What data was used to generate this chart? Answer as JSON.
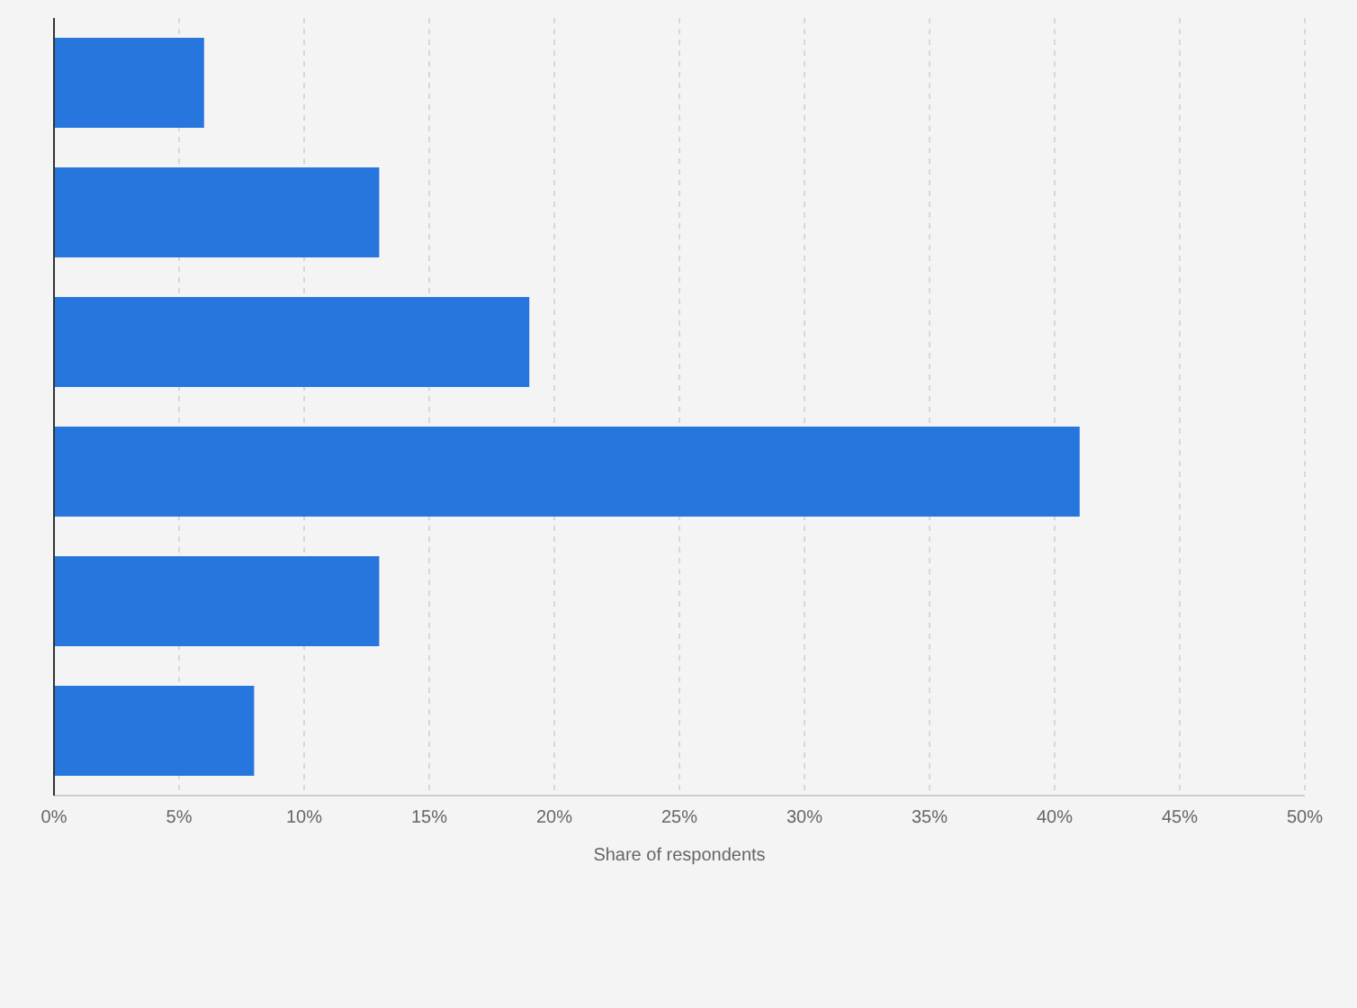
{
  "chart_data": {
    "type": "bar",
    "orientation": "horizontal",
    "xlabel": "Share of respondents",
    "categories": [
      null,
      null,
      null,
      null,
      null,
      null
    ],
    "values": [
      6,
      13,
      19,
      41,
      13,
      8
    ],
    "color": "#2776dd",
    "xlim": [
      0,
      50
    ],
    "xticks": [
      {
        "value": 0,
        "label": "0%"
      },
      {
        "value": 5,
        "label": "5%"
      },
      {
        "value": 10,
        "label": "10%"
      },
      {
        "value": 15,
        "label": "15%"
      },
      {
        "value": 20,
        "label": "20%"
      },
      {
        "value": 25,
        "label": "25%"
      },
      {
        "value": 30,
        "label": "30%"
      },
      {
        "value": 35,
        "label": "35%"
      },
      {
        "value": 40,
        "label": "40%"
      },
      {
        "value": 45,
        "label": "45%"
      },
      {
        "value": 50,
        "label": "50%"
      }
    ],
    "grid": "x",
    "legend": false
  }
}
